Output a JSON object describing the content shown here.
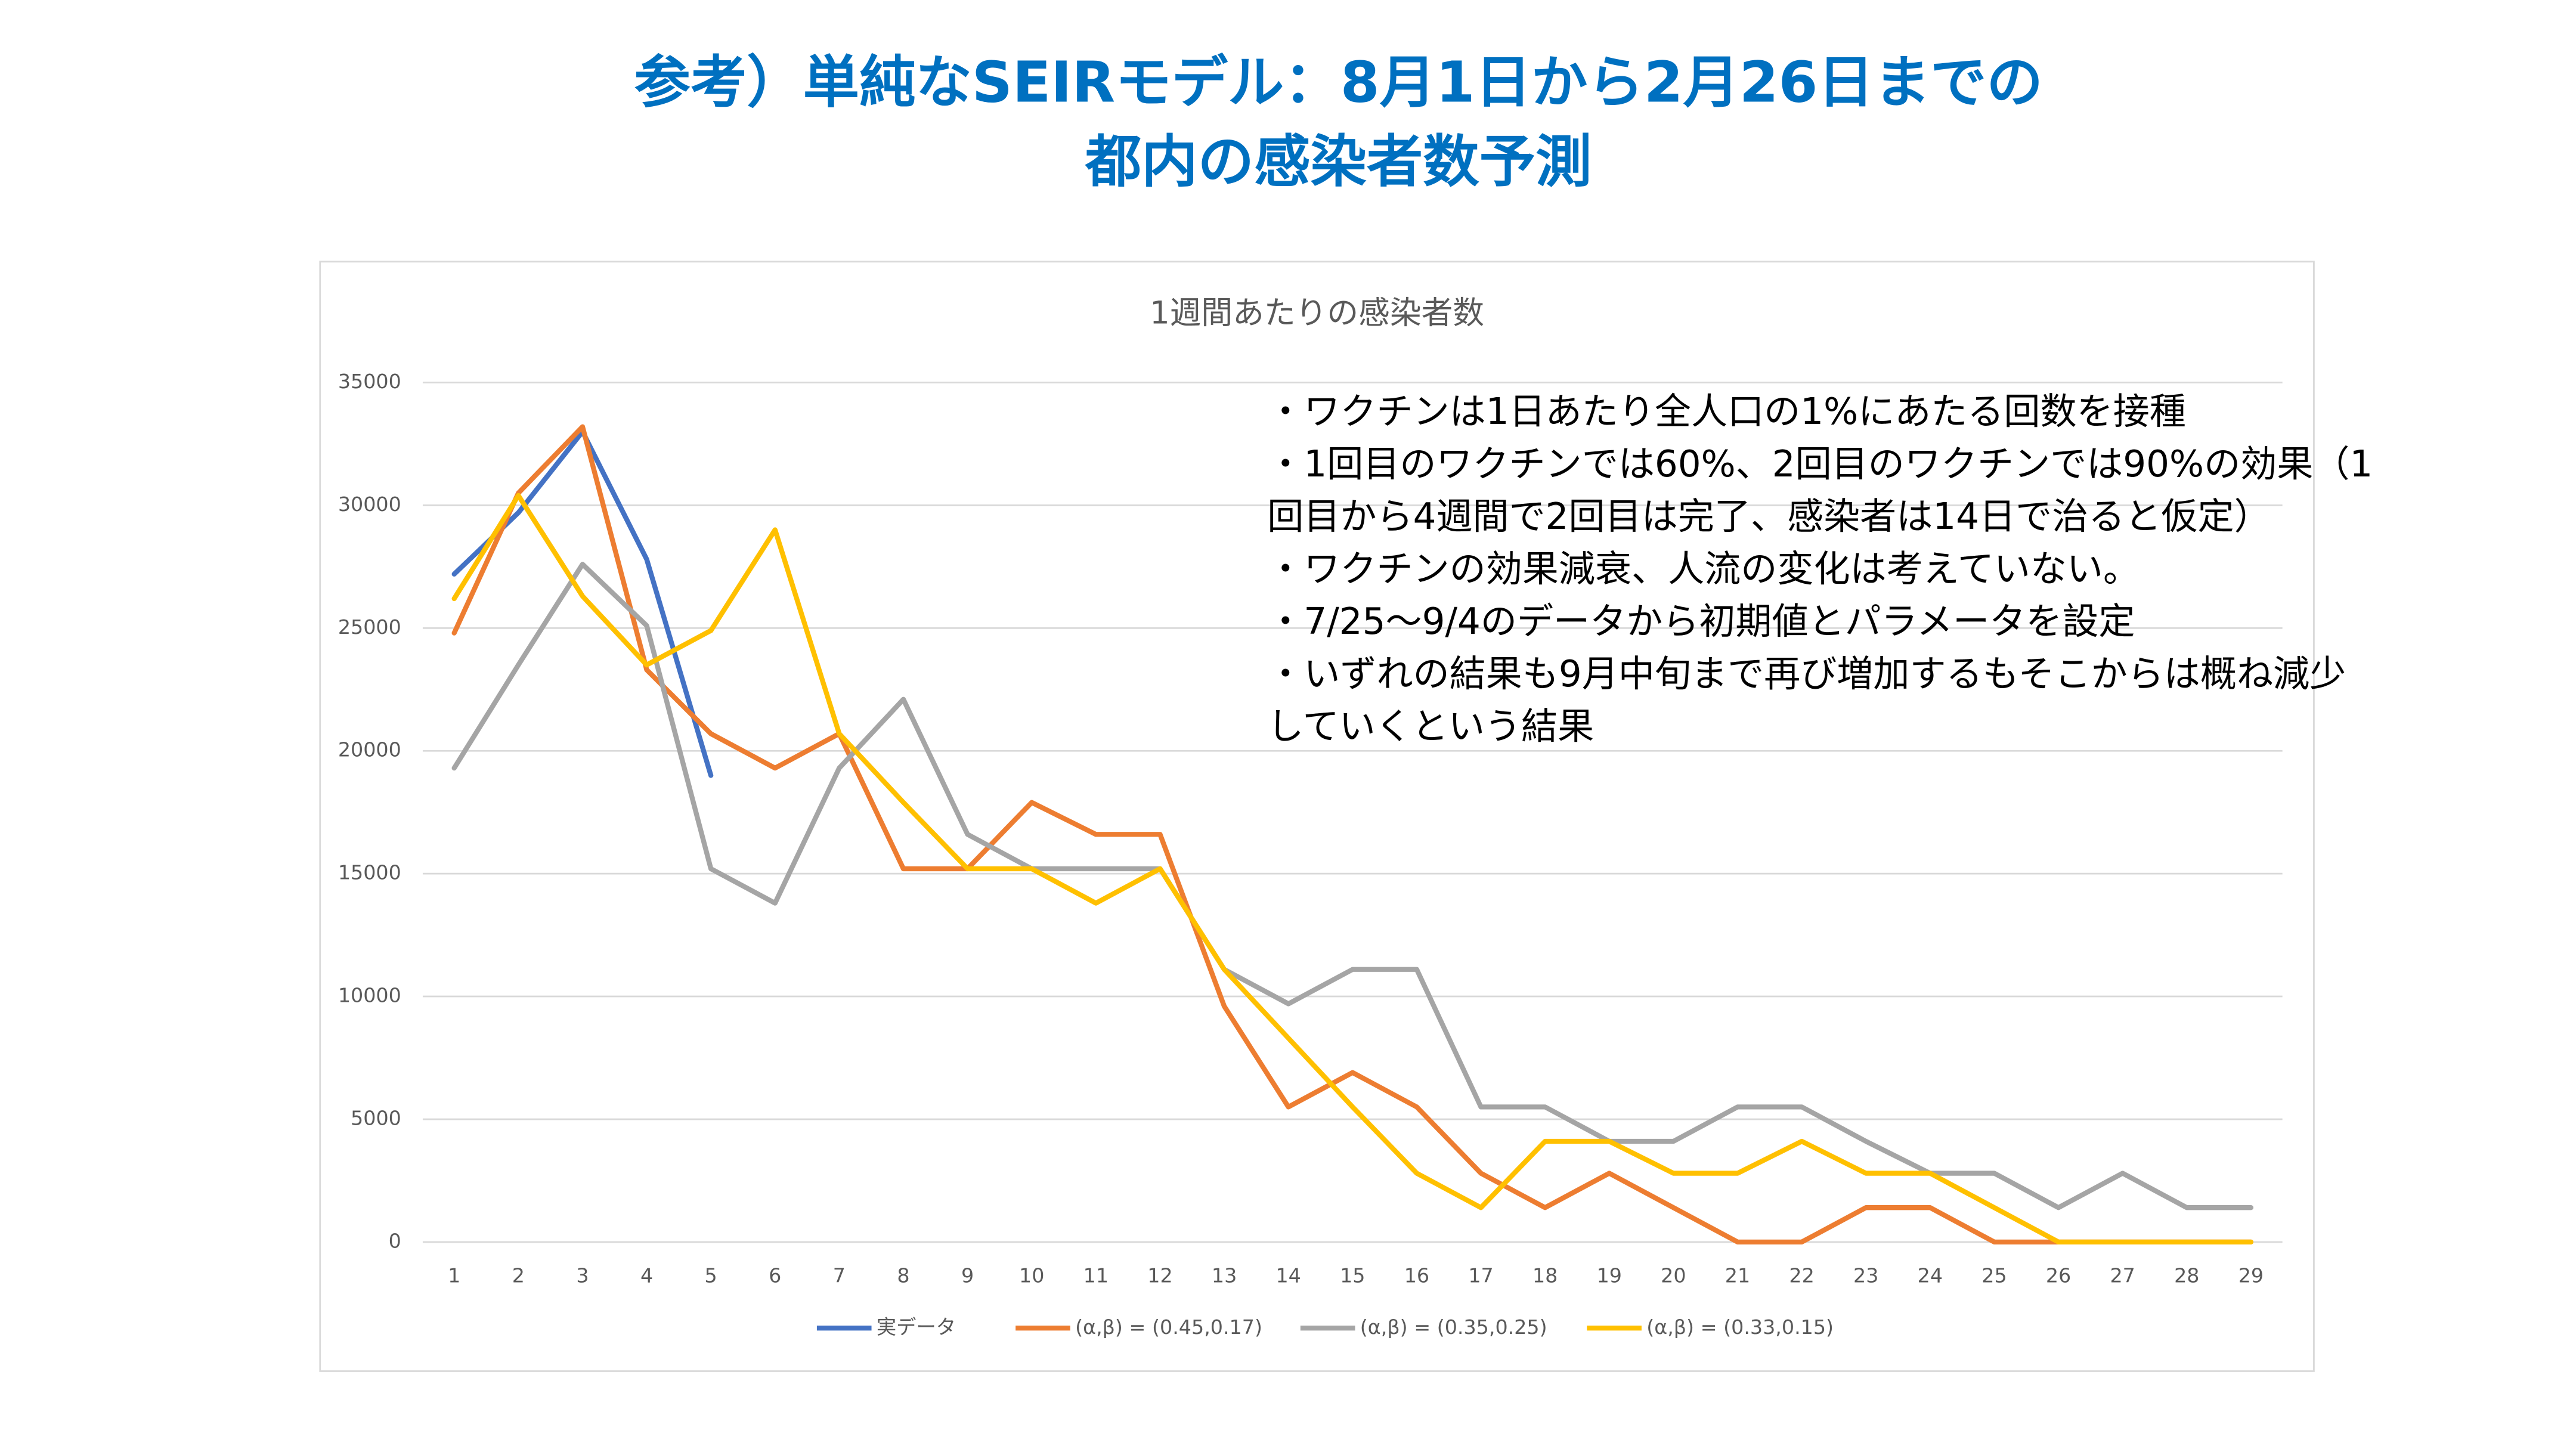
{
  "chart_data": {
    "type": "line",
    "title": [
      "参考）単純なSEIRモデル：8月1日から2月26日までの",
      "都内の感染者数予測"
    ],
    "chart_title": "1週間あたりの感染者数",
    "annotations": [
      "・ワクチンは1日あたり全人口の1%にあたる回数を接種",
      "・1回目のワクチンでは60%、2回目のワクチンでは90%の効果（1",
      "回目から4週間で2回目は完了、感染者は14日で治ると仮定）",
      "・ワクチンの効果減衰、人流の変化は考えていない。",
      "・7/25〜9/4のデータから初期値とパラメータを設定",
      "・いずれの結果も9月中旬まで再び増加するもそこからは概ね減少",
      "していくという結果"
    ],
    "categories": [
      "1",
      "2",
      "3",
      "4",
      "5",
      "6",
      "7",
      "8",
      "9",
      "10",
      "11",
      "12",
      "13",
      "14",
      "15",
      "16",
      "17",
      "18",
      "19",
      "20",
      "21",
      "22",
      "23",
      "24",
      "25",
      "26",
      "27",
      "28",
      "29"
    ],
    "series": [
      {
        "name": "実データ",
        "color": "#4472c4",
        "values": [
          27200,
          29700,
          33000,
          27800,
          19000,
          null,
          null,
          null,
          null,
          null,
          null,
          null,
          null,
          null,
          null,
          null,
          null,
          null,
          null,
          null,
          null,
          null,
          null,
          null,
          null,
          null,
          null,
          null,
          null
        ]
      },
      {
        "name": "(α,β) = (0.45,0.17)",
        "color": "#ed7d31",
        "values": [
          24800,
          30500,
          33200,
          23300,
          20700,
          19300,
          20700,
          15200,
          15200,
          17900,
          16600,
          16600,
          9600,
          5500,
          6900,
          5500,
          2800,
          1400,
          2800,
          1400,
          0,
          0,
          1400,
          1400,
          0,
          0,
          0,
          0,
          0
        ]
      },
      {
        "name": "(α,β) = (0.35,0.25)",
        "color": "#a5a5a5",
        "values": [
          19300,
          23500,
          27600,
          25100,
          15200,
          13800,
          19300,
          22100,
          16600,
          15200,
          15200,
          15200,
          11100,
          9700,
          11100,
          11100,
          5500,
          5500,
          4100,
          4100,
          5500,
          5500,
          4100,
          2800,
          2800,
          1400,
          2800,
          1400,
          1400
        ]
      },
      {
        "name": "(α,β) = (0.33,0.15)",
        "color": "#ffc000",
        "values": [
          26200,
          30400,
          26300,
          23500,
          24900,
          29000,
          20700,
          17900,
          15200,
          15200,
          13800,
          15200,
          11100,
          8300,
          5500,
          2800,
          1400,
          4100,
          4100,
          2800,
          2800,
          4100,
          2800,
          2800,
          1400,
          0,
          0,
          0,
          0
        ]
      }
    ],
    "ylim": [
      0,
      35000
    ],
    "yticks": [
      0,
      5000,
      10000,
      15000,
      20000,
      25000,
      30000,
      35000
    ],
    "grid": true,
    "legend": "bottom"
  }
}
